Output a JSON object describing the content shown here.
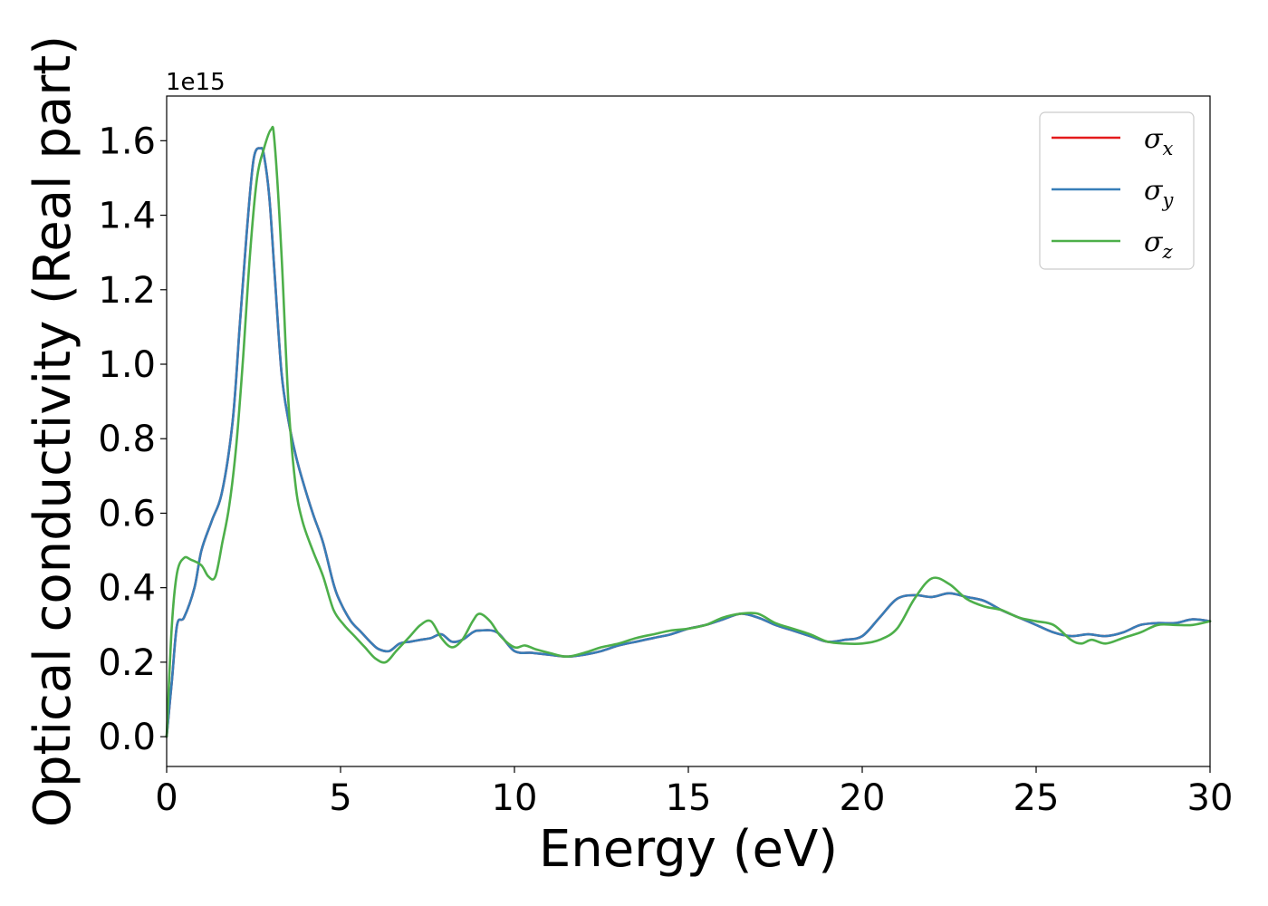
{
  "chart_data": {
    "type": "line",
    "title": "",
    "xlabel": "Energy (eV)",
    "ylabel": "Optical conductivity (Real part)",
    "y_offset_label": "1e15",
    "xlim": [
      0,
      30
    ],
    "ylim": [
      -0.08,
      1.72
    ],
    "x_ticks": [
      0,
      5,
      10,
      15,
      20,
      25,
      30
    ],
    "x_tick_labels": [
      "0",
      "5",
      "10",
      "15",
      "20",
      "25",
      "30"
    ],
    "y_ticks": [
      0.0,
      0.2,
      0.4,
      0.6,
      0.8,
      1.0,
      1.2,
      1.4,
      1.6
    ],
    "y_tick_labels": [
      "0.0",
      "0.2",
      "0.4",
      "0.6",
      "0.8",
      "1.0",
      "1.2",
      "1.4",
      "1.6"
    ],
    "grid": false,
    "legend_position": "top-right",
    "series": [
      {
        "name": "σx",
        "legend_symbol": "σ",
        "legend_sub": "x",
        "color": "#e41a1c",
        "x": [
          0,
          0.15,
          0.3,
          0.5,
          0.8,
          1.0,
          1.3,
          1.6,
          1.9,
          2.1,
          2.3,
          2.5,
          2.7,
          2.8,
          2.95,
          3.1,
          3.3,
          3.5,
          3.7,
          3.9,
          4.2,
          4.5,
          4.8,
          5.0,
          5.3,
          5.6,
          5.9,
          6.1,
          6.4,
          6.7,
          7.0,
          7.3,
          7.6,
          7.9,
          8.2,
          8.5,
          8.8,
          9.0,
          9.5,
          10.0,
          10.5,
          11.0,
          11.5,
          12.0,
          12.5,
          13.0,
          13.5,
          14.0,
          14.5,
          15.0,
          15.5,
          16.0,
          16.5,
          17.0,
          17.5,
          18.0,
          18.5,
          19.0,
          19.5,
          20.0,
          20.5,
          21.0,
          21.5,
          22.0,
          22.5,
          23.0,
          23.5,
          24.0,
          24.5,
          25.0,
          25.5,
          26.0,
          26.5,
          27.0,
          27.5,
          28.0,
          28.5,
          29.0,
          29.5,
          30.0
        ],
        "y": [
          0.0,
          0.15,
          0.3,
          0.32,
          0.4,
          0.5,
          0.58,
          0.66,
          0.85,
          1.1,
          1.35,
          1.55,
          1.58,
          1.56,
          1.45,
          1.25,
          0.98,
          0.85,
          0.76,
          0.69,
          0.6,
          0.52,
          0.41,
          0.36,
          0.31,
          0.28,
          0.25,
          0.235,
          0.23,
          0.25,
          0.255,
          0.26,
          0.265,
          0.275,
          0.255,
          0.26,
          0.28,
          0.285,
          0.28,
          0.23,
          0.225,
          0.22,
          0.215,
          0.22,
          0.23,
          0.245,
          0.255,
          0.265,
          0.275,
          0.29,
          0.3,
          0.315,
          0.33,
          0.32,
          0.3,
          0.285,
          0.27,
          0.255,
          0.26,
          0.27,
          0.32,
          0.37,
          0.38,
          0.375,
          0.385,
          0.375,
          0.365,
          0.34,
          0.32,
          0.3,
          0.28,
          0.27,
          0.275,
          0.27,
          0.28,
          0.3,
          0.305,
          0.305,
          0.315,
          0.31
        ]
      },
      {
        "name": "σy",
        "legend_symbol": "σ",
        "legend_sub": "y",
        "color": "#377eb8",
        "x": [
          0,
          0.15,
          0.3,
          0.5,
          0.8,
          1.0,
          1.3,
          1.6,
          1.9,
          2.1,
          2.3,
          2.5,
          2.7,
          2.8,
          2.95,
          3.1,
          3.3,
          3.5,
          3.7,
          3.9,
          4.2,
          4.5,
          4.8,
          5.0,
          5.3,
          5.6,
          5.9,
          6.1,
          6.4,
          6.7,
          7.0,
          7.3,
          7.6,
          7.9,
          8.2,
          8.5,
          8.8,
          9.0,
          9.5,
          10.0,
          10.5,
          11.0,
          11.5,
          12.0,
          12.5,
          13.0,
          13.5,
          14.0,
          14.5,
          15.0,
          15.5,
          16.0,
          16.5,
          17.0,
          17.5,
          18.0,
          18.5,
          19.0,
          19.5,
          20.0,
          20.5,
          21.0,
          21.5,
          22.0,
          22.5,
          23.0,
          23.5,
          24.0,
          24.5,
          25.0,
          25.5,
          26.0,
          26.5,
          27.0,
          27.5,
          28.0,
          28.5,
          29.0,
          29.5,
          30.0
        ],
        "y": [
          0.0,
          0.15,
          0.3,
          0.32,
          0.4,
          0.5,
          0.58,
          0.66,
          0.85,
          1.1,
          1.35,
          1.55,
          1.58,
          1.56,
          1.45,
          1.25,
          0.98,
          0.85,
          0.76,
          0.69,
          0.6,
          0.52,
          0.41,
          0.36,
          0.31,
          0.28,
          0.25,
          0.235,
          0.23,
          0.25,
          0.255,
          0.26,
          0.265,
          0.275,
          0.255,
          0.26,
          0.28,
          0.285,
          0.28,
          0.23,
          0.225,
          0.22,
          0.215,
          0.22,
          0.23,
          0.245,
          0.255,
          0.265,
          0.275,
          0.29,
          0.3,
          0.315,
          0.33,
          0.32,
          0.3,
          0.285,
          0.27,
          0.255,
          0.26,
          0.27,
          0.32,
          0.37,
          0.38,
          0.375,
          0.385,
          0.375,
          0.365,
          0.34,
          0.32,
          0.3,
          0.28,
          0.27,
          0.275,
          0.27,
          0.28,
          0.3,
          0.305,
          0.305,
          0.315,
          0.31
        ]
      },
      {
        "name": "σz",
        "legend_symbol": "σ",
        "legend_sub": "z",
        "color": "#4daf4a",
        "x": [
          0,
          0.15,
          0.3,
          0.5,
          0.7,
          1.0,
          1.2,
          1.4,
          1.6,
          1.8,
          2.0,
          2.2,
          2.4,
          2.6,
          2.8,
          3.0,
          3.1,
          3.3,
          3.5,
          3.7,
          3.9,
          4.2,
          4.5,
          4.8,
          5.1,
          5.4,
          5.7,
          6.0,
          6.3,
          6.6,
          7.0,
          7.3,
          7.6,
          7.9,
          8.2,
          8.5,
          8.8,
          9.0,
          9.3,
          9.6,
          10.0,
          10.3,
          10.6,
          11.0,
          11.5,
          12.0,
          12.5,
          13.0,
          13.5,
          14.0,
          14.5,
          15.0,
          15.5,
          16.0,
          16.5,
          17.0,
          17.5,
          18.0,
          18.5,
          19.0,
          19.5,
          20.0,
          20.5,
          21.0,
          21.5,
          22.0,
          22.5,
          23.0,
          23.5,
          24.0,
          24.5,
          25.0,
          25.5,
          26.0,
          26.3,
          26.6,
          27.0,
          27.5,
          28.0,
          28.5,
          29.0,
          29.5,
          30.0
        ],
        "y": [
          0.0,
          0.3,
          0.44,
          0.48,
          0.475,
          0.46,
          0.43,
          0.43,
          0.52,
          0.62,
          0.78,
          1.02,
          1.3,
          1.5,
          1.58,
          1.63,
          1.6,
          1.3,
          0.9,
          0.68,
          0.58,
          0.5,
          0.43,
          0.34,
          0.3,
          0.27,
          0.24,
          0.21,
          0.2,
          0.23,
          0.27,
          0.3,
          0.31,
          0.265,
          0.24,
          0.26,
          0.31,
          0.33,
          0.31,
          0.27,
          0.24,
          0.245,
          0.235,
          0.225,
          0.215,
          0.225,
          0.24,
          0.25,
          0.265,
          0.275,
          0.285,
          0.29,
          0.3,
          0.32,
          0.33,
          0.33,
          0.305,
          0.29,
          0.275,
          0.255,
          0.25,
          0.25,
          0.26,
          0.29,
          0.37,
          0.425,
          0.41,
          0.37,
          0.35,
          0.34,
          0.32,
          0.31,
          0.3,
          0.26,
          0.25,
          0.26,
          0.25,
          0.265,
          0.28,
          0.3,
          0.3,
          0.3,
          0.31
        ]
      }
    ]
  }
}
